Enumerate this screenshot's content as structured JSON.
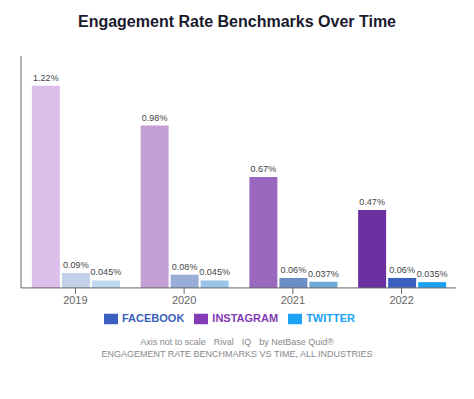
{
  "chart_data": {
    "type": "bar",
    "title": "Engagement Rate Benchmarks Over Time",
    "categories": [
      "2019",
      "2020",
      "2021",
      "2022"
    ],
    "series": [
      {
        "name": "INSTAGRAM",
        "color": "#833ab4",
        "colors": [
          "#ddbfec",
          "#c49fd6",
          "#9b68c0",
          "#6b2fa0"
        ],
        "values": [
          1.22,
          0.98,
          0.67,
          0.47
        ],
        "value_labels": [
          "1.22%",
          "0.98%",
          "0.67%",
          "0.47%"
        ]
      },
      {
        "name": "FACEBOOK",
        "color": "#3b5fc0",
        "colors": [
          "#c5d0eb",
          "#9aadd9",
          "#6b8dc8",
          "#3b5fc0"
        ],
        "values": [
          0.09,
          0.08,
          0.06,
          0.06
        ],
        "value_labels": [
          "0.09%",
          "0.08%",
          "0.06%",
          "0.06%"
        ]
      },
      {
        "name": "TWITTER",
        "color": "#1da1f2",
        "colors": [
          "#c0d9f0",
          "#9ac5e8",
          "#6aaad4",
          "#1da1f2"
        ],
        "values": [
          0.045,
          0.045,
          0.037,
          0.035
        ],
        "value_labels": [
          "0.045%",
          "0.045%",
          "0.037%",
          "0.035%"
        ]
      }
    ],
    "ylim": [
      0,
      1.4
    ],
    "tick_labels": "x",
    "grid": false,
    "legend": "bottom",
    "data_labels": true,
    "annotations": [
      "Axis not to scale",
      "Rival",
      "IQ",
      "by NetBase Quid®",
      "ENGAGEMENT RATE BENCHMARKS VS TIME, ALL INDUSTRIES"
    ]
  }
}
